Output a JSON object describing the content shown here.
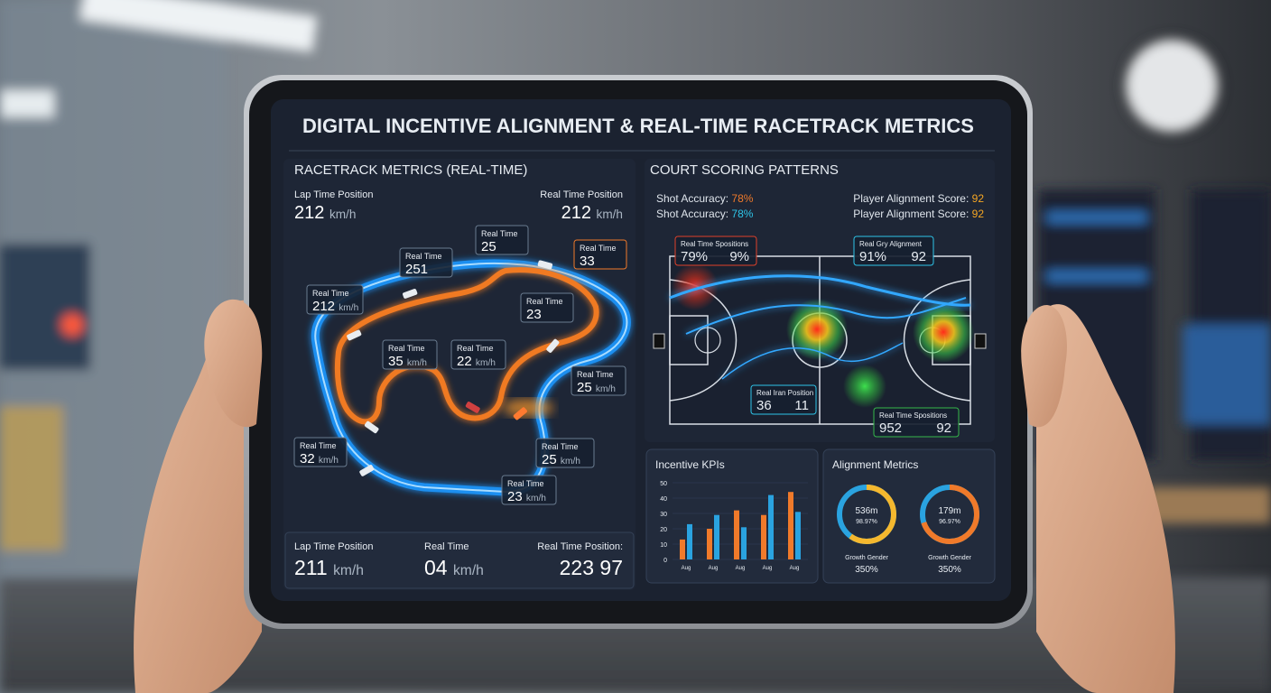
{
  "title": "DIGITAL INCENTIVE ALIGNMENT & REAL-TIME RACETRACK METRICS",
  "racetrack": {
    "heading": "RACETRACK METRICS (REAL-TIME)",
    "top_stats": [
      {
        "label": "Lap Time Position",
        "value": 212,
        "unit": "km/h"
      },
      {
        "label": "Real Time Position",
        "value": 212,
        "unit": "km/h"
      }
    ],
    "callouts": [
      {
        "label": "Real Time",
        "value": 25
      },
      {
        "label": "Real Time",
        "value": 251
      },
      {
        "label": "Real Time",
        "value": 33
      },
      {
        "label": "Real Time",
        "value": 212,
        "unit": "km/h"
      },
      {
        "label": "Real Time",
        "value": 23
      },
      {
        "label": "Real Time",
        "value": 35,
        "unit": "km/h"
      },
      {
        "label": "Real Time",
        "value": 22,
        "unit": "km/h"
      },
      {
        "label": "Real Time",
        "value": 25,
        "unit": "km/h"
      },
      {
        "label": "Real Time",
        "value": 32,
        "unit": "km/h"
      },
      {
        "label": "Real Time",
        "value": 25,
        "unit": "km/h"
      },
      {
        "label": "Real Time",
        "value": 23,
        "unit": "km/h"
      }
    ],
    "bottom_stats": [
      {
        "label": "Lap Time Position",
        "value": 211,
        "unit": "km/h"
      },
      {
        "label": "Real Time",
        "value": "04",
        "unit": "km/h"
      },
      {
        "label": "Real Time Position:",
        "value": "223 97"
      }
    ]
  },
  "court": {
    "heading": "COURT SCORING PATTERNS",
    "stats": [
      {
        "label": "Shot Accuracy:",
        "value": "78%",
        "color": "#f07a2a"
      },
      {
        "label": "Shot Accuracy:",
        "value": "78%",
        "color": "#2ec4e8"
      },
      {
        "label": "Player Alignment Score:",
        "value": 92,
        "color": "#f5a623"
      },
      {
        "label": "Player Alignment Score:",
        "value": 92,
        "color": "#f5a623"
      }
    ],
    "callouts": [
      {
        "label": "Real Time Spositions",
        "values": [
          "79%",
          "9%"
        ]
      },
      {
        "label": "Real Gry Alignment",
        "values": [
          "91%",
          "92"
        ]
      },
      {
        "label": "Real Iran Position",
        "values": [
          "36",
          "11"
        ]
      },
      {
        "label": "Real Time Spositions",
        "values": [
          "952",
          "92"
        ]
      }
    ]
  },
  "incentive_kpis": {
    "type": "bar",
    "title": "Incentive KPIs",
    "categories": [
      "Aug",
      "Aug",
      "Aug",
      "Aug",
      "Aug"
    ],
    "series": [
      {
        "color": "#f07a2a",
        "values": [
          13,
          20,
          32,
          29,
          44
        ]
      },
      {
        "color": "#2aa3e0",
        "values": [
          23,
          29,
          21,
          42,
          31
        ]
      }
    ],
    "ylim": [
      0,
      50
    ],
    "yticks": [
      0,
      10,
      20,
      30,
      40,
      50
    ]
  },
  "alignment_metrics": {
    "title": "Alignment Metrics",
    "gauges": [
      {
        "value": "536m",
        "detail": "98.97%",
        "caption": "Growth Gender",
        "percent": "350%",
        "share": 60,
        "color": "#f5b82e"
      },
      {
        "value": "179m",
        "detail": "96.97%",
        "caption": "Growth Gender",
        "percent": "350%",
        "share": 70,
        "color": "#f07a2a"
      }
    ]
  }
}
